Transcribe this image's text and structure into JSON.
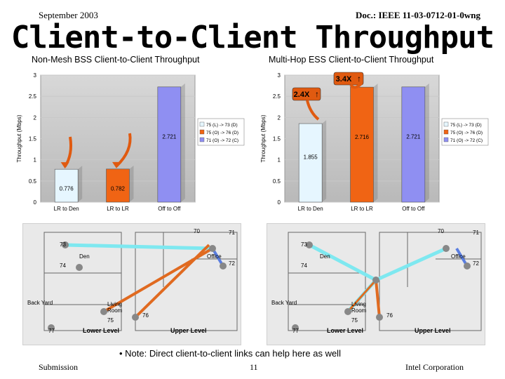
{
  "header": {
    "date": "September 2003",
    "doc": "Doc.: IEEE 11-03-0712-01-0wng",
    "title": "Client-to-Client Throughput"
  },
  "footer": {
    "left": "Submission",
    "page": "11",
    "right": "Intel Corporation"
  },
  "note": "• Note: Direct client-to-client links can help here as well",
  "colors": {
    "bar_den": "#e6f6ff",
    "bar_lr": "#f06414",
    "bar_off": "#8f8ff2",
    "arrow": "#e05a10",
    "link_cyan": "#7ee8f0",
    "link_orange": "#e06a20",
    "link_blue": "#5a7ee0"
  },
  "chart_data": [
    {
      "type": "bar",
      "title": "Non-Mesh BSS Client-to-Client Throughput",
      "ylabel": "Throughput (Mbps)",
      "ylim": [
        0,
        3
      ],
      "yticks": [
        "0",
        "0.5",
        "1",
        "1.5",
        "2",
        "2.5",
        "3"
      ],
      "categories": [
        "LR to Den",
        "LR to LR",
        "Off to Off"
      ],
      "values": [
        0.776,
        0.782,
        2.721
      ],
      "value_labels": [
        "0.776",
        "0.782",
        "2.721"
      ],
      "legend": [
        "75 (L) -> 73 (D)",
        "75 (O) -> 76 (D)",
        "71 (O) -> 72 (C)"
      ],
      "legend_position": "right",
      "annotations": []
    },
    {
      "type": "bar",
      "title": "Multi-Hop ESS Client-to-Client Throughput",
      "ylabel": "Throughput (Mbps)",
      "ylim": [
        0,
        3
      ],
      "yticks": [
        "0",
        "0.5",
        "1",
        "1.5",
        "2",
        "2.5",
        "3"
      ],
      "categories": [
        "LR to Den",
        "LR to LR",
        "Off to Off"
      ],
      "values": [
        1.855,
        2.716,
        2.721
      ],
      "value_labels": [
        "1.855",
        "2.716",
        "2.721"
      ],
      "legend": [
        "75 (L) -> 73 (D)",
        "75 (O) -> 76 (D)",
        "71 (O) -> 72 (C)"
      ],
      "legend_position": "right",
      "annotations": [
        "2.4X",
        "3.4X"
      ]
    }
  ],
  "floorplans": [
    {
      "node_labels": [
        "70",
        "71",
        "73",
        "Den",
        "74",
        "72",
        "Office",
        "Back Yard",
        "Living Room",
        "75",
        "76",
        "77",
        "Lower Level",
        "Upper Level"
      ]
    },
    {
      "node_labels": [
        "70",
        "71",
        "73",
        "Den",
        "74",
        "72",
        "Office",
        "Back Yard",
        "Living Room",
        "75",
        "76",
        "77",
        "Lower Level",
        "Upper Level"
      ]
    }
  ]
}
